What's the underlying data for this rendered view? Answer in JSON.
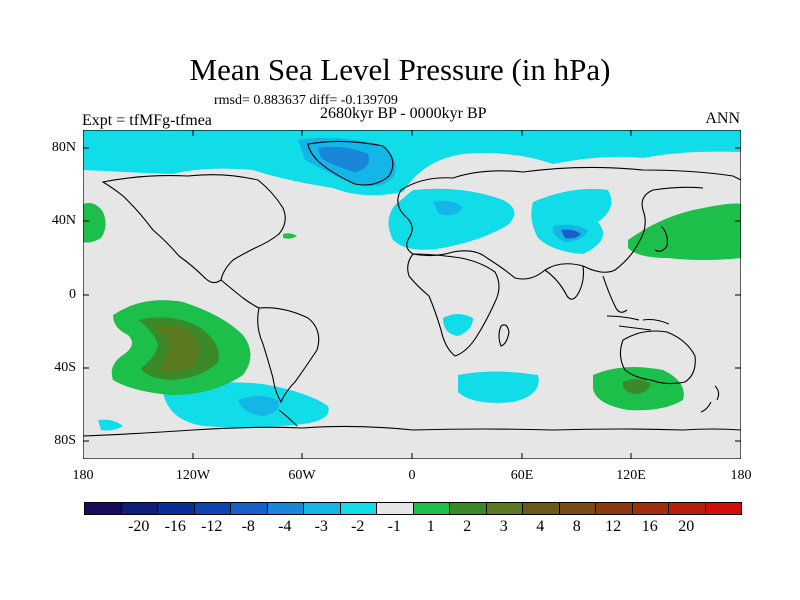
{
  "title": "Mean Sea Level Pressure (in hPa)",
  "stats": "rmsd= 0.883637 diff= -0.139709",
  "period": "2680kyr BP - 0000kyr BP",
  "experiment": "Expt = tfMFg-tfmea",
  "season": "ANN",
  "lat_labels": [
    "80N",
    "40N",
    "0",
    "40S",
    "80S"
  ],
  "lon_labels": [
    "180",
    "120W",
    "60W",
    "0",
    "60E",
    "120E",
    "180"
  ],
  "colorbar": {
    "colors": [
      "#1a0a5c",
      "#0d1f7a",
      "#0a2e96",
      "#0e43b0",
      "#1660c8",
      "#1a86d9",
      "#14b6e8",
      "#11dde8",
      "#e6e6e6",
      "#1cbf4a",
      "#3a8a2a",
      "#5c7a20",
      "#6b5a1a",
      "#7a4a14",
      "#8a3a0e",
      "#a02e0a",
      "#b81e08",
      "#d40e04"
    ],
    "labels": [
      "-20",
      "-16",
      "-12",
      "-8",
      "-4",
      "-3",
      "-2",
      "-1",
      "1",
      "2",
      "3",
      "4",
      "8",
      "12",
      "16",
      "20"
    ]
  }
}
